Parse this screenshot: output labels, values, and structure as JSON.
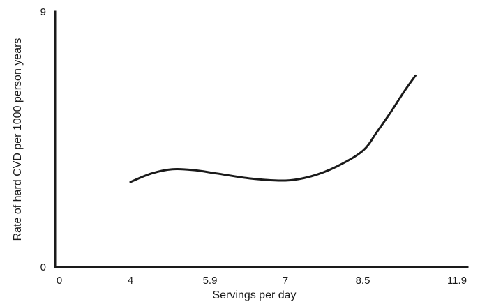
{
  "chart_data": {
    "type": "line",
    "title": "",
    "xlabel": "Servings per day",
    "ylabel": "Rate of hard CVD per 1000 person years",
    "x_ticks": [
      {
        "value": 0,
        "label": "0"
      },
      {
        "value": 4,
        "label": "4"
      },
      {
        "value": 5.9,
        "label": "5.9"
      },
      {
        "value": 7,
        "label": "7"
      },
      {
        "value": 8.5,
        "label": "8.5"
      },
      {
        "value": 11.9,
        "label": "11.9"
      }
    ],
    "y_ticks": [
      {
        "value": 0,
        "label": "0"
      },
      {
        "value": 9,
        "label": "9"
      }
    ],
    "ylim": [
      0,
      9
    ],
    "grid": false,
    "legend": "none",
    "line_color": "#1a1a1a",
    "series": [
      {
        "points": [
          {
            "x": 4.0,
            "y": 3.0
          },
          {
            "x": 4.5,
            "y": 3.3
          },
          {
            "x": 5.0,
            "y": 3.45
          },
          {
            "x": 5.5,
            "y": 3.42
          },
          {
            "x": 6.0,
            "y": 3.3
          },
          {
            "x": 6.5,
            "y": 3.12
          },
          {
            "x": 7.0,
            "y": 3.05
          },
          {
            "x": 7.5,
            "y": 3.2
          },
          {
            "x": 8.0,
            "y": 3.55
          },
          {
            "x": 8.5,
            "y": 4.1
          },
          {
            "x": 9.0,
            "y": 4.75
          },
          {
            "x": 9.5,
            "y": 5.45
          },
          {
            "x": 10.0,
            "y": 6.2
          },
          {
            "x": 10.4,
            "y": 6.75
          }
        ]
      }
    ]
  }
}
